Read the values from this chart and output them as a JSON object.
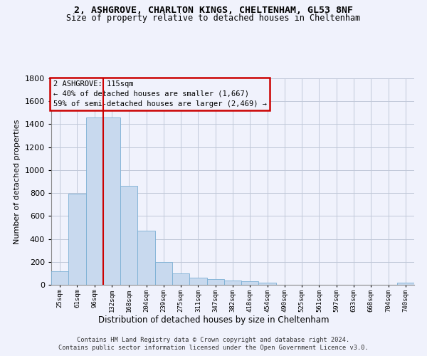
{
  "title_line1": "2, ASHGROVE, CHARLTON KINGS, CHELTENHAM, GL53 8NF",
  "title_line2": "Size of property relative to detached houses in Cheltenham",
  "xlabel": "Distribution of detached houses by size in Cheltenham",
  "ylabel": "Number of detached properties",
  "footnote_line1": "Contains HM Land Registry data © Crown copyright and database right 2024.",
  "footnote_line2": "Contains public sector information licensed under the Open Government Licence v3.0.",
  "bar_color": "#c8d9ee",
  "bar_edge_color": "#7bafd4",
  "grid_color": "#c0c8d8",
  "annotation_box_edgecolor": "#cc0000",
  "property_line_color": "#cc0000",
  "background_color": "#f0f2fc",
  "categories": [
    "25sqm",
    "61sqm",
    "96sqm",
    "132sqm",
    "168sqm",
    "204sqm",
    "239sqm",
    "275sqm",
    "311sqm",
    "347sqm",
    "382sqm",
    "418sqm",
    "454sqm",
    "490sqm",
    "525sqm",
    "561sqm",
    "597sqm",
    "633sqm",
    "668sqm",
    "704sqm",
    "740sqm"
  ],
  "values": [
    120,
    795,
    1460,
    1460,
    860,
    470,
    200,
    100,
    65,
    50,
    35,
    30,
    20,
    3,
    3,
    3,
    3,
    3,
    3,
    3,
    20
  ],
  "ylim": [
    0,
    1800
  ],
  "yticks": [
    0,
    200,
    400,
    600,
    800,
    1000,
    1200,
    1400,
    1600,
    1800
  ],
  "property_bin_index": 2,
  "annotation_line1": "2 ASHGROVE: 115sqm",
  "annotation_line2": "← 40% of detached houses are smaller (1,667)",
  "annotation_line3": "59% of semi-detached houses are larger (2,469) →"
}
